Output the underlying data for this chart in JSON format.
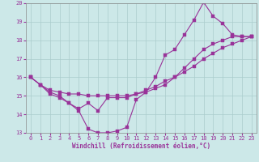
{
  "xlabel": "Windchill (Refroidissement éolien,°C)",
  "xlim": [
    -0.5,
    23.5
  ],
  "ylim": [
    13,
    20
  ],
  "yticks": [
    13,
    14,
    15,
    16,
    17,
    18,
    19,
    20
  ],
  "xticks": [
    0,
    1,
    2,
    3,
    4,
    5,
    6,
    7,
    8,
    9,
    10,
    11,
    12,
    13,
    14,
    15,
    16,
    17,
    18,
    19,
    20,
    21,
    22,
    23
  ],
  "bg_color": "#cce8e8",
  "line_color": "#993399",
  "grid_color": "#aacccc",
  "line1_x": [
    0,
    1,
    2,
    3,
    4,
    5,
    6,
    7,
    8,
    9,
    10,
    11,
    12,
    13,
    14,
    15,
    16,
    17,
    18,
    19,
    20,
    21,
    22,
    23
  ],
  "line1_y": [
    16.0,
    15.6,
    15.1,
    14.9,
    14.6,
    14.2,
    13.2,
    13.0,
    13.0,
    13.1,
    13.3,
    14.8,
    15.2,
    16.0,
    17.2,
    17.5,
    18.3,
    19.1,
    20.05,
    19.3,
    18.9,
    18.3,
    18.2,
    18.2
  ],
  "line2_x": [
    0,
    1,
    2,
    3,
    4,
    5,
    6,
    7,
    8,
    9,
    10,
    11,
    12,
    13,
    14,
    15,
    16,
    17,
    18,
    19,
    20,
    21,
    22,
    23
  ],
  "line2_y": [
    16.0,
    15.6,
    15.3,
    15.2,
    15.1,
    15.1,
    15.0,
    15.0,
    15.0,
    15.0,
    15.0,
    15.1,
    15.2,
    15.4,
    15.6,
    16.0,
    16.5,
    17.0,
    17.5,
    17.8,
    18.0,
    18.2,
    18.2,
    18.2
  ],
  "line3_x": [
    0,
    1,
    2,
    3,
    4,
    5,
    6,
    7,
    8,
    9,
    10,
    11,
    12,
    13,
    14,
    15,
    16,
    17,
    18,
    19,
    20,
    21,
    22,
    23
  ],
  "line3_y": [
    16.0,
    15.6,
    15.2,
    15.0,
    14.6,
    14.3,
    14.6,
    14.2,
    14.9,
    14.9,
    14.9,
    15.1,
    15.3,
    15.5,
    15.8,
    16.0,
    16.3,
    16.6,
    17.0,
    17.3,
    17.6,
    17.8,
    18.0,
    18.2
  ]
}
